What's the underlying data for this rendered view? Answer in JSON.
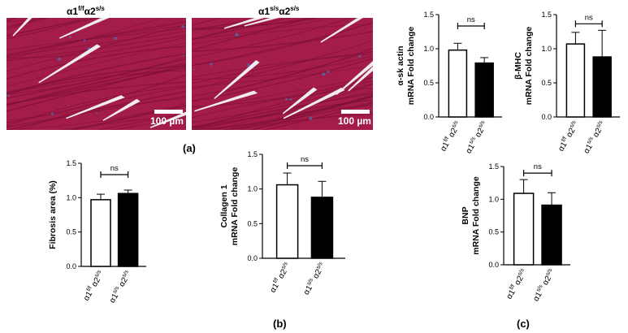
{
  "histology": {
    "left": {
      "title": {
        "base1": "α1",
        "sup1": "f/f",
        "base2": "α2",
        "sup2": "s/s"
      },
      "scale_label": "100 µm"
    },
    "right": {
      "title": {
        "base1": "α1",
        "sup1": "s/s",
        "base2": "α2",
        "sup2": "s/s"
      },
      "scale_label": "100 µm"
    },
    "colors": {
      "tissue": "#a41c4a",
      "tissue_dark": "#7c0f35",
      "gap": "#f1ecef",
      "fibrosis": "#4a6fa8"
    }
  },
  "panel_labels": {
    "a": "(a)",
    "b": "(b)",
    "c": "(c)"
  },
  "groups": {
    "g1": {
      "base1": "α1",
      "sup1": "f/f",
      "base2": "α2",
      "sup2": "s/s"
    },
    "g2": {
      "base1": "α1",
      "sup1": "s/s",
      "base2": "α2",
      "sup2": "s/s"
    }
  },
  "chart_data": [
    {
      "id": "sk-actin",
      "type": "bar",
      "ylabel_lines": [
        "α-sk actin",
        "mRNA Fold change"
      ],
      "ylim": [
        0,
        1.5
      ],
      "yticks": [
        0.0,
        0.5,
        1.0,
        1.5
      ],
      "categories": [
        "α1f/f α2s/s",
        "α1s/s α2s/s"
      ],
      "values": [
        0.98,
        0.79
      ],
      "errors": [
        0.1,
        0.08
      ],
      "fills": [
        "#ffffff",
        "#000000"
      ],
      "significance": "ns"
    },
    {
      "id": "beta-mhc",
      "type": "bar",
      "ylabel_lines": [
        "β-MHC",
        "mRNA Fold change"
      ],
      "ylim": [
        0,
        1.5
      ],
      "yticks": [
        0.0,
        0.5,
        1.0,
        1.5
      ],
      "categories": [
        "α1f/f α2s/s",
        "α1s/s α2s/s"
      ],
      "values": [
        1.07,
        0.88
      ],
      "errors": [
        0.17,
        0.39
      ],
      "fills": [
        "#ffffff",
        "#000000"
      ],
      "significance": "ns"
    },
    {
      "id": "fibrosis",
      "type": "bar",
      "ylabel_lines": [
        "Fibrosis area (%)"
      ],
      "ylim": [
        0,
        1.5
      ],
      "yticks": [
        0.0,
        0.5,
        1.0,
        1.5
      ],
      "categories": [
        "α1f/f α2s/s",
        "α1s/s α2s/s"
      ],
      "values": [
        0.97,
        1.06
      ],
      "errors": [
        0.08,
        0.05
      ],
      "fills": [
        "#ffffff",
        "#000000"
      ],
      "significance": "ns"
    },
    {
      "id": "collagen",
      "type": "bar",
      "ylabel_lines": [
        "Collagen 1",
        "mRNA Fold change"
      ],
      "ylim": [
        0,
        1.5
      ],
      "yticks": [
        0.0,
        0.5,
        1.0,
        1.5
      ],
      "categories": [
        "α1f/f α2s/s",
        "α1s/s α2s/s"
      ],
      "values": [
        1.06,
        0.88
      ],
      "errors": [
        0.17,
        0.23
      ],
      "fills": [
        "#ffffff",
        "#000000"
      ],
      "significance": "ns"
    },
    {
      "id": "bnp",
      "type": "bar",
      "ylabel_lines": [
        "BNP",
        "mRNA Fold change"
      ],
      "ylim": [
        0,
        1.5
      ],
      "yticks": [
        0.0,
        0.5,
        1.0,
        1.5
      ],
      "categories": [
        "α1f/f α2s/s",
        "α1s/s α2s/s"
      ],
      "values": [
        1.09,
        0.91
      ],
      "errors": [
        0.21,
        0.19
      ],
      "fills": [
        "#ffffff",
        "#000000"
      ],
      "significance": "ns"
    }
  ]
}
